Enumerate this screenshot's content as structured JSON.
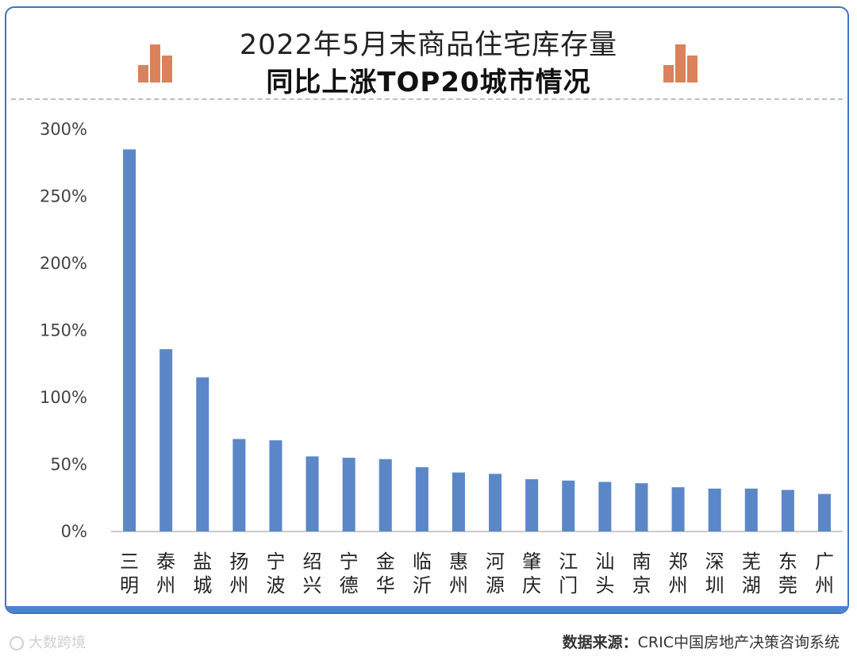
{
  "header": {
    "title_line1": "2022年5月末商品住宅库存量",
    "title_line2": "同比上涨TOP20城市情况"
  },
  "chart_data": {
    "type": "bar",
    "title": "2022年5月末商品住宅库存量同比上涨TOP20城市情况",
    "xlabel": "",
    "ylabel": "",
    "categories": [
      "三明",
      "泰州",
      "盐城",
      "扬州",
      "宁波",
      "绍兴",
      "宁德",
      "金华",
      "临沂",
      "惠州",
      "河源",
      "肇庆",
      "江门",
      "汕头",
      "南京",
      "郑州",
      "深圳",
      "芜湖",
      "东莞",
      "广州"
    ],
    "values": [
      285,
      136,
      115,
      69,
      68,
      56,
      55,
      54,
      48,
      44,
      43,
      39,
      38,
      37,
      36,
      33,
      32,
      32,
      31,
      28
    ],
    "ylim": [
      0,
      300
    ],
    "yticks": [
      0,
      50,
      100,
      150,
      200,
      250,
      300
    ],
    "ytick_labels": [
      "0%",
      "50%",
      "100%",
      "150%",
      "200%",
      "250%",
      "300%"
    ],
    "grid": false,
    "bar_color": "#5b87c8"
  },
  "footer": {
    "source_label": "数据来源：",
    "source_text": "CRIC中国房地产决策咨询系统",
    "watermark": "大数跨境"
  },
  "colors": {
    "border": "#3d74c4",
    "accent_deco": "#d9825c",
    "bar": "#5b87c8"
  }
}
